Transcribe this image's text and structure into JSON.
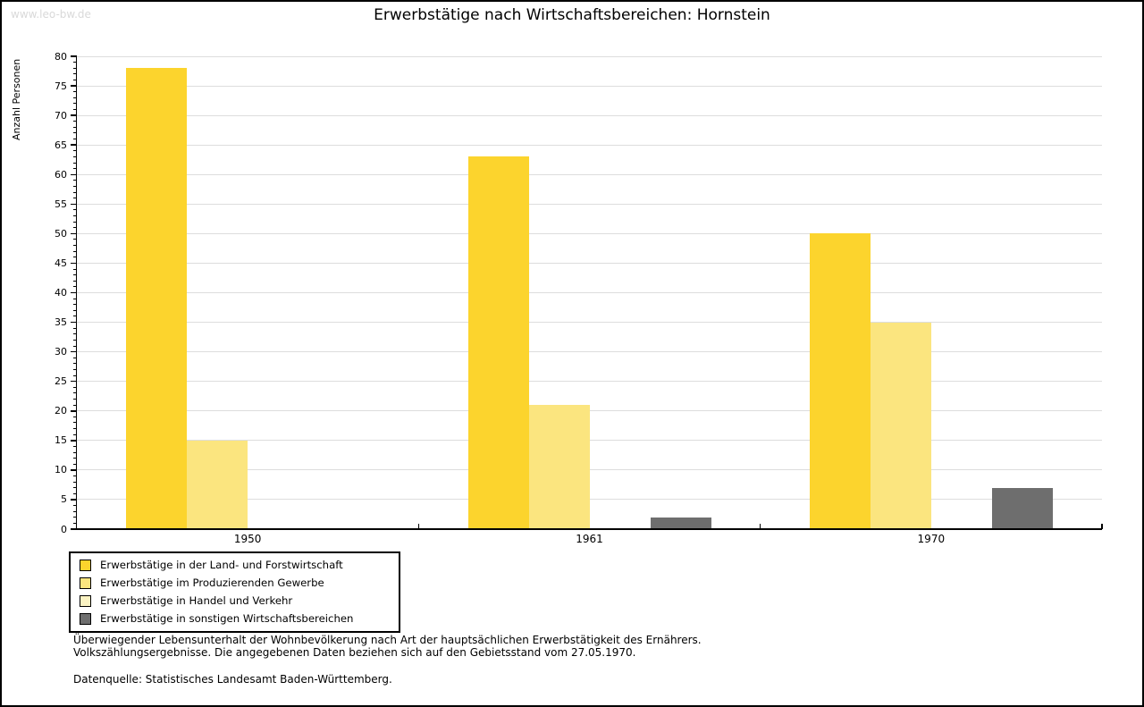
{
  "watermark": "www.leo-bw.de",
  "title": "Erwerbstätige nach Wirtschaftsbereichen: Hornstein",
  "chart_data": {
    "type": "bar",
    "title": "Erwerbstätige nach Wirtschaftsbereichen: Hornstein",
    "categories": [
      "1950",
      "1961",
      "1970"
    ],
    "series": [
      {
        "name": "Erwerbstätige in der Land- und Forstwirtschaft",
        "color": "#fcd42d",
        "values": [
          78,
          63,
          50
        ]
      },
      {
        "name": "Erwerbstätige im Produzierenden Gewerbe",
        "color": "#fbe57f",
        "values": [
          15,
          21,
          35
        ]
      },
      {
        "name": "Erwerbstätige in Handel und Verkehr",
        "color": "#fbf3c3",
        "values": [
          0,
          0,
          0
        ]
      },
      {
        "name": "Erwerbstätige in sonstigen Wirtschaftsbereichen",
        "color": "#6e6e6e",
        "values": [
          0,
          2,
          7
        ]
      }
    ],
    "xlabel": "",
    "ylabel": "Anzahl Personen",
    "ylim": [
      0,
      80
    ],
    "ytick_step": 5,
    "minor_tick_step": 1,
    "grid": "horizontal-major",
    "legend_position": "bottom-left",
    "bar_gap_within_group": 0
  },
  "footnotes": {
    "line1": "Überwiegender Lebensunterhalt der Wohnbevölkerung nach Art der hauptsächlichen Erwerbstätigkeit des Ernährers.",
    "line2": "Volkszählungsergebnisse. Die angegebenen Daten beziehen sich auf den Gebietsstand vom 27.05.1970.",
    "source": "Datenquelle: Statistisches Landesamt Baden-Württemberg."
  },
  "colors": {
    "background": "#ffffff",
    "axis": "#000000",
    "grid": "#dddddd",
    "watermark": "#d9d9d9",
    "frame_border": "#000000"
  }
}
